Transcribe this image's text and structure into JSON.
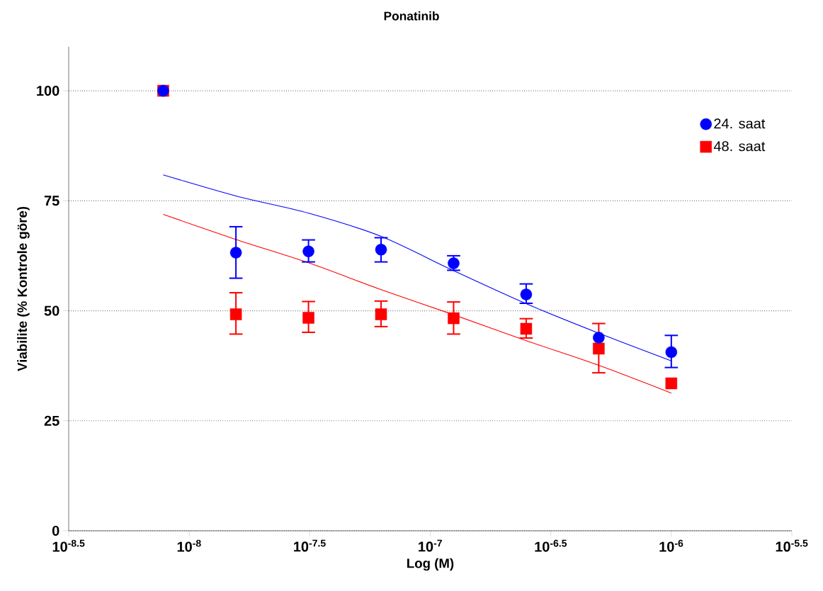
{
  "chart_data": {
    "type": "scatter",
    "title": "Ponatinib",
    "xlabel": "Log (M)",
    "ylabel": "Viabilite (% Kontrole göre)",
    "log": "x",
    "grid": "y",
    "legend": "top right",
    "xlim": [
      3.162e-09,
      3.162e-06
    ],
    "xticks": [
      {
        "value": 3.162e-09,
        "label": "10$^{-8.5}$"
      },
      {
        "value": 1e-08,
        "label": "10$^{-8}$"
      },
      {
        "value": 3.162e-08,
        "label": "10$^{-7.5}$"
      },
      {
        "value": 1e-07,
        "label": "10$^{-7}$"
      },
      {
        "value": 3.162e-07,
        "label": "10$^{-6.5}$"
      },
      {
        "value": 1e-06,
        "label": "10$^{-6}$"
      },
      {
        "value": 3.162e-06,
        "label": "10$^{-5.5}$"
      }
    ],
    "ylim": [
      0,
      110
    ],
    "yticks": [
      0,
      25,
      50,
      75,
      100
    ],
    "series": [
      {
        "name": "24. saat",
        "marker": "circle",
        "color": "#0000ff",
        "x": [
          7.8e-09,
          1.5625e-08,
          3.125e-08,
          6.25e-08,
          1.25e-07,
          2.5e-07,
          5e-07,
          1e-06
        ],
        "values": [
          100,
          63.2,
          63.5,
          63.9,
          60.8,
          53.7,
          43.9,
          40.6
        ],
        "errors": [
          null,
          [
            57.4,
            69.1
          ],
          [
            61.1,
            66.1
          ],
          [
            61.1,
            66.6
          ],
          [
            59.2,
            62.5
          ],
          [
            51.7,
            56.1
          ],
          null,
          [
            37.1,
            44.4
          ]
        ]
      },
      {
        "name": "48. saat",
        "marker": "square",
        "color": "#ff0000",
        "x": [
          7.8e-09,
          1.5625e-08,
          3.125e-08,
          6.25e-08,
          1.25e-07,
          2.5e-07,
          5e-07,
          1e-06
        ],
        "values": [
          100,
          49.2,
          48.4,
          49.2,
          48.3,
          45.9,
          41.4,
          33.5
        ],
        "errors": [
          null,
          [
            44.7,
            54.1
          ],
          [
            45.1,
            52.1
          ],
          [
            46.4,
            52.2
          ],
          [
            44.7,
            52.0
          ],
          [
            43.8,
            48.2
          ],
          [
            35.9,
            47.1
          ],
          null
        ]
      },
      {
        "type": "line",
        "color": "#0000ff",
        "x": [
          7.8e-09,
          1.5625e-08,
          3.125e-08,
          6.25e-08,
          1.25e-07,
          2.5e-07,
          5e-07,
          1e-06
        ],
        "values": [
          80.9,
          76.1,
          72.2,
          66.9,
          59.1,
          51.6,
          44.9,
          38.6
        ]
      },
      {
        "type": "line",
        "color": "#ff0000",
        "x": [
          7.8e-09,
          1.5625e-08,
          3.125e-08,
          6.25e-08,
          1.25e-07,
          2.5e-07,
          5e-07,
          1e-06
        ],
        "values": [
          71.9,
          66.2,
          60.9,
          54.8,
          49.1,
          43.2,
          37.6,
          31.3
        ]
      }
    ]
  }
}
